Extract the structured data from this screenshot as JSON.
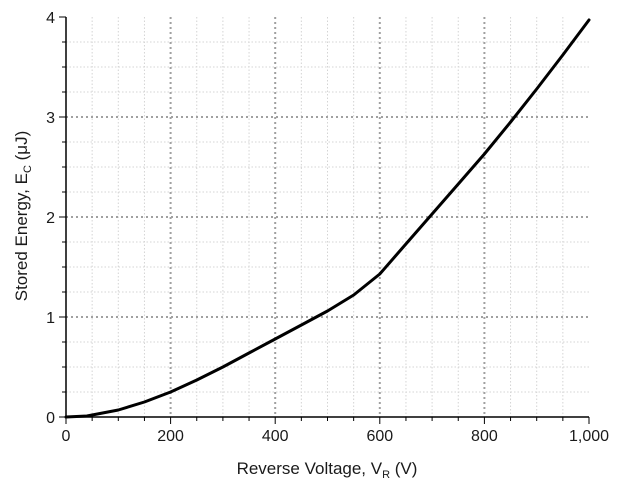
{
  "chart_data": {
    "type": "line",
    "xlabel": {
      "main": "Reverse Voltage, V",
      "sub": "R",
      "unit": " (V)"
    },
    "ylabel": {
      "main": "Stored Energy, E",
      "sub": "C",
      "unit": " (μJ)"
    },
    "xlim": [
      0,
      1000
    ],
    "ylim": [
      0,
      4
    ],
    "x_ticks": [
      0,
      200,
      400,
      600,
      800,
      1000
    ],
    "x_tick_labels": [
      "0",
      "200",
      "400",
      "600",
      "800",
      "1,000"
    ],
    "y_ticks": [
      0,
      1,
      2,
      3,
      4
    ],
    "y_tick_labels": [
      "0",
      "1",
      "2",
      "3",
      "4"
    ],
    "x_minor_step": 50,
    "y_minor_step": 0.25,
    "grid": true,
    "colors": {
      "line": "#000000",
      "major_grid": "#a0a0a0",
      "minor_grid": "#d4d4d4",
      "axis": "#000000"
    },
    "series": [
      {
        "x": [
          0,
          40,
          100,
          150,
          200,
          250,
          300,
          350,
          400,
          450,
          500,
          550,
          600,
          650,
          700,
          750,
          800,
          850,
          900,
          950,
          1000
        ],
        "y": [
          0,
          0.01,
          0.07,
          0.15,
          0.25,
          0.37,
          0.5,
          0.64,
          0.78,
          0.92,
          1.06,
          1.22,
          1.43,
          1.73,
          2.03,
          2.33,
          2.63,
          2.95,
          3.28,
          3.62,
          3.97
        ]
      }
    ]
  }
}
